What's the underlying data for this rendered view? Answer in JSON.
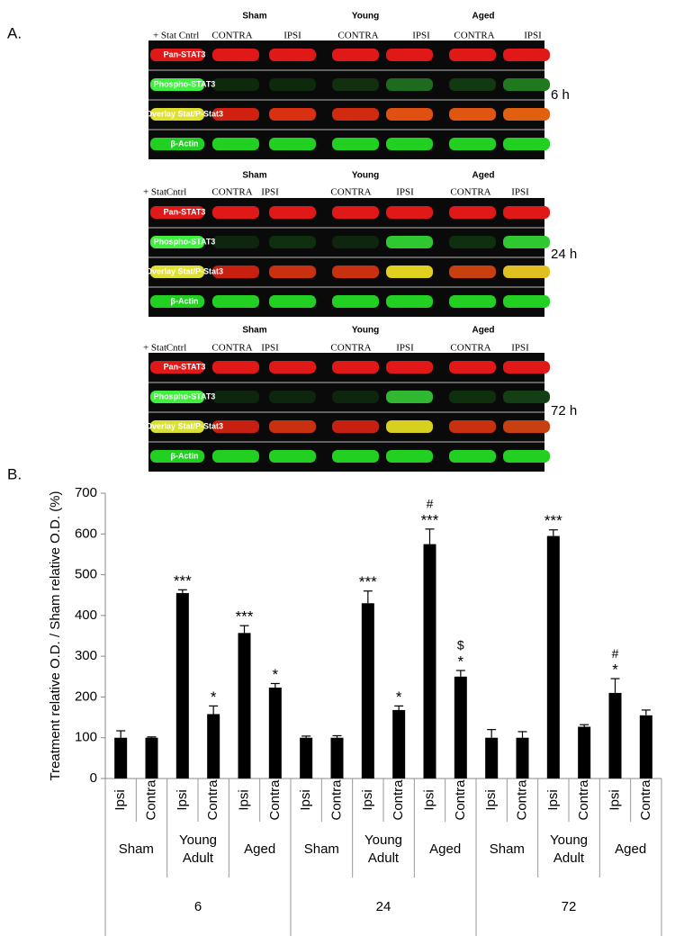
{
  "blots": {
    "panel_label": "A.",
    "panels": [
      {
        "groups": [
          "Sham",
          "Young",
          "Aged"
        ],
        "lanes": [
          "+ Stat",
          "Cntrl",
          "CONTRA",
          "IPSI",
          "CONTRA",
          "IPSI",
          "CONTRA",
          "IPSI"
        ],
        "rows": [
          "Pan-STAT3",
          "Phospho-STAT3",
          "Overlay Stat/P-Stat3",
          "β-Actin"
        ],
        "time": "6 h"
      },
      {
        "groups": [
          "Sham",
          "Young",
          "Aged"
        ],
        "lanes": [
          "+ Stat",
          "Cntrl",
          "CONTRA",
          "IPSI",
          "CONTRA",
          "IPSI",
          "CONTRA",
          "IPSI"
        ],
        "rows": [
          "Pan-STAT3",
          "Phospho-STAT3",
          "Overlay Stat/P-Stat3",
          "β-Actin"
        ],
        "time": "24 h"
      },
      {
        "groups": [
          "Sham",
          "Young",
          "Aged"
        ],
        "lanes": [
          "+ Stat",
          "Cntrl",
          "CONTRA",
          "IPSI",
          "CONTRA",
          "IPSI",
          "CONTRA",
          "IPSI"
        ],
        "rows": [
          "Pan-STAT3",
          "Phospho-STAT3",
          "Overlay Stat/P-Stat3",
          "β-Actin"
        ],
        "time": "72 h"
      }
    ]
  },
  "chart_data": {
    "type": "bar",
    "panel_label": "B.",
    "y_label": "Treatment relative O.D. / Sham relative O.D. (%)",
    "categories": [
      "Ipsi",
      "Contra",
      "Ipsi",
      "Contra",
      "Ipsi",
      "Contra",
      "Ipsi",
      "Contra",
      "Ipsi",
      "Contra",
      "Ipsi",
      "Contra",
      "Ipsi",
      "Contra",
      "Ipsi",
      "Contra",
      "Ipsi",
      "Contra"
    ],
    "groups": [
      "Sham",
      "Young Adult",
      "Aged",
      "Sham",
      "Young Adult",
      "Aged",
      "Sham",
      "Young Adult",
      "Aged"
    ],
    "times": [
      "6",
      "24",
      "72"
    ],
    "values": [
      100,
      100,
      455,
      158,
      357,
      223,
      100,
      100,
      430,
      168,
      575,
      250,
      100,
      100,
      595,
      127,
      210,
      155
    ],
    "errors": [
      17,
      2,
      8,
      20,
      18,
      10,
      4,
      5,
      30,
      10,
      37,
      15,
      20,
      15,
      15,
      5,
      35,
      13
    ],
    "annotations": [
      [],
      [],
      [
        "***"
      ],
      [
        "*"
      ],
      [
        "***"
      ],
      [
        "*"
      ],
      [],
      [],
      [
        "***"
      ],
      [
        "*"
      ],
      [
        "#",
        "***"
      ],
      [
        "$",
        "*"
      ],
      [],
      [],
      [
        "***"
      ],
      [],
      [
        "#",
        "*"
      ],
      []
    ],
    "color": "#000000",
    "ylim": [
      0,
      700
    ],
    "yticks": [
      0,
      100,
      200,
      300,
      400,
      500,
      600,
      700
    ]
  }
}
